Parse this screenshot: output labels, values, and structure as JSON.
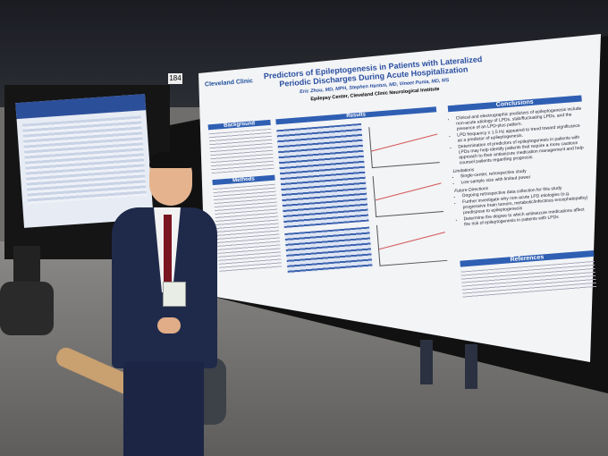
{
  "board_number": "184",
  "poster": {
    "logo": "Cleveland Clinic",
    "title": "Predictors of Epileptogenesis in Patients with Lateralized Periodic Discharges During Acute Hospitalization",
    "authors": "Eric Zhou, MD, MPH, Stephen Hantus, MD, Vineet Punia, MD, MS",
    "affiliation": "Epilepsy Center, Cleveland Clinic Neurological Institute",
    "background": "Background",
    "methods": "Methods",
    "results": "Results",
    "conclusions": {
      "heading": "Conclusions",
      "bullets": [
        "Clinical and electrographic predictors of epileptogenesis include non-acute etiology of LPDs, stab/fluctuating LPDs, and the presence of an LPD-plus pattern.",
        "LPD frequency ≥ 1.5 Hz appeared to trend toward significance as a predictor of epileptogenesis.",
        "Determination of predictors of epileptogenesis in patients with LPDs may help identify patients that require a more cautious approach to their antiseizure medication management and help counsel patients regarding prognosis."
      ],
      "limitations_heading": "Limitations",
      "limitations": [
        "Single-center, retrospective study",
        "Low sample size with limited power"
      ],
      "future_heading": "Future Directions",
      "future": [
        "Ongoing retrospective data collection for this study",
        "Further investigate why non-acute LPD etiologies (e.g. progressive brain tumors, metabolic/infectious encephalopathy) predispose to epileptogenesis",
        "Determine the degree to which antiseizure medications affect the risk of epileptogenesis in patients with LPDs"
      ]
    },
    "references": "References"
  }
}
